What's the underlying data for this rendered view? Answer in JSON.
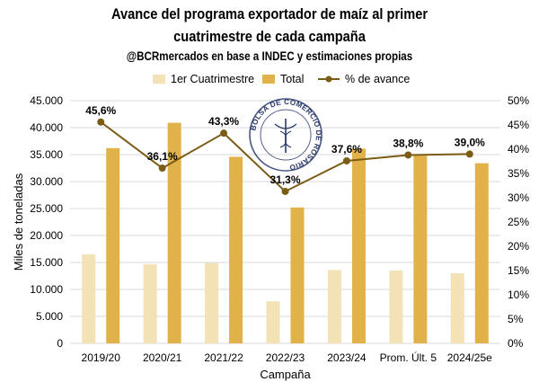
{
  "header": {
    "title_line1": "Avance del programa exportador de maíz al primer",
    "title_line2": "cuatrimestre de cada campaña",
    "subtitle": "@BCRmercados en base a INDEC y estimaciones propias"
  },
  "logo": {
    "text": "BOLSA DE COMERCIO DE ROSARIO"
  },
  "colors": {
    "first_quarter": "#f2e2b6",
    "total": "#e2b24a",
    "progress": "#7a5c14",
    "grid": "#d9d9d9"
  },
  "chart_data": {
    "type": "bar",
    "categories": [
      "2019/20",
      "2020/21",
      "2021/22",
      "2022/23",
      "2023/24",
      "Prom. Últ. 5",
      "2024/25e"
    ],
    "series": [
      {
        "name": "1er Cuatrimestre",
        "type": "bar",
        "axis": "left",
        "values": [
          16500,
          14700,
          14900,
          7800,
          13600,
          13500,
          13000
        ]
      },
      {
        "name": "Total",
        "type": "bar",
        "axis": "left",
        "values": [
          36200,
          40900,
          34600,
          25200,
          36100,
          34800,
          33400
        ]
      },
      {
        "name": "% de avance",
        "type": "line",
        "axis": "right",
        "values": [
          45.6,
          36.1,
          43.3,
          31.3,
          37.6,
          38.8,
          39.0
        ],
        "labels": [
          "45,6%",
          "36,1%",
          "43,3%",
          "31,3%",
          "37,6%",
          "38,8%",
          "39,0%"
        ]
      }
    ],
    "xlabel": "Campaña",
    "ylabel": "Miles de toneladas",
    "ylim": [
      0,
      45000
    ],
    "y2lim": [
      0,
      50
    ],
    "yticks": [
      "0",
      "5.000",
      "10.000",
      "15.000",
      "20.000",
      "25.000",
      "30.000",
      "35.000",
      "40.000",
      "45.000"
    ],
    "y2ticks": [
      "0%",
      "5%",
      "10%",
      "15%",
      "20%",
      "25%",
      "30%",
      "35%",
      "40%",
      "45%",
      "50%"
    ],
    "legend_position": "top",
    "grid": true
  }
}
